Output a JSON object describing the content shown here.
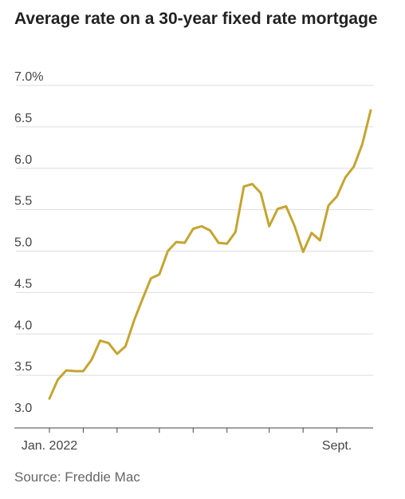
{
  "chart_data": {
    "type": "line",
    "title": "Average rate on a 30-year fixed rate mortgage",
    "xlabel": "",
    "ylabel": "",
    "ylim": [
      3.0,
      7.0
    ],
    "y_ticks": [
      {
        "value": 7.0,
        "label": "7.0%"
      },
      {
        "value": 6.5,
        "label": "6.5"
      },
      {
        "value": 6.0,
        "label": "6.0"
      },
      {
        "value": 5.5,
        "label": "5.5"
      },
      {
        "value": 5.0,
        "label": "5.0"
      },
      {
        "value": 4.5,
        "label": "4.5"
      },
      {
        "value": 4.0,
        "label": "4.0"
      },
      {
        "value": 3.5,
        "label": "3.5"
      },
      {
        "value": 3.0,
        "label": "3.0"
      }
    ],
    "x_ticks": [
      {
        "date": "2022-01-06",
        "label": "Jan. 2022"
      },
      {
        "date": "2022-02-03",
        "label": ""
      },
      {
        "date": "2022-03-03",
        "label": ""
      },
      {
        "date": "2022-04-07",
        "label": ""
      },
      {
        "date": "2022-05-05",
        "label": ""
      },
      {
        "date": "2022-06-02",
        "label": ""
      },
      {
        "date": "2022-07-07",
        "label": ""
      },
      {
        "date": "2022-08-04",
        "label": ""
      },
      {
        "date": "2022-09-01",
        "label": "Sept."
      }
    ],
    "grid": true,
    "color": "#c4a531",
    "series": [
      {
        "name": "",
        "x": [
          "2022-01-06",
          "2022-01-13",
          "2022-01-20",
          "2022-01-27",
          "2022-02-03",
          "2022-02-10",
          "2022-02-17",
          "2022-02-24",
          "2022-03-03",
          "2022-03-10",
          "2022-03-17",
          "2022-03-24",
          "2022-03-31",
          "2022-04-07",
          "2022-04-14",
          "2022-04-21",
          "2022-04-28",
          "2022-05-05",
          "2022-05-12",
          "2022-05-19",
          "2022-05-26",
          "2022-06-02",
          "2022-06-09",
          "2022-06-16",
          "2022-06-23",
          "2022-06-30",
          "2022-07-07",
          "2022-07-14",
          "2022-07-21",
          "2022-07-28",
          "2022-08-04",
          "2022-08-11",
          "2022-08-18",
          "2022-08-25",
          "2022-09-01",
          "2022-09-08",
          "2022-09-15",
          "2022-09-22",
          "2022-09-29"
        ],
        "values": [
          3.22,
          3.45,
          3.56,
          3.55,
          3.55,
          3.69,
          3.92,
          3.89,
          3.76,
          3.85,
          4.16,
          4.42,
          4.67,
          4.72,
          5.0,
          5.11,
          5.1,
          5.27,
          5.3,
          5.25,
          5.1,
          5.09,
          5.23,
          5.78,
          5.81,
          5.7,
          5.3,
          5.51,
          5.54,
          5.3,
          4.99,
          5.22,
          5.13,
          5.55,
          5.66,
          5.89,
          6.02,
          6.29,
          6.7
        ]
      }
    ],
    "source": "Source: Freddie Mac"
  }
}
